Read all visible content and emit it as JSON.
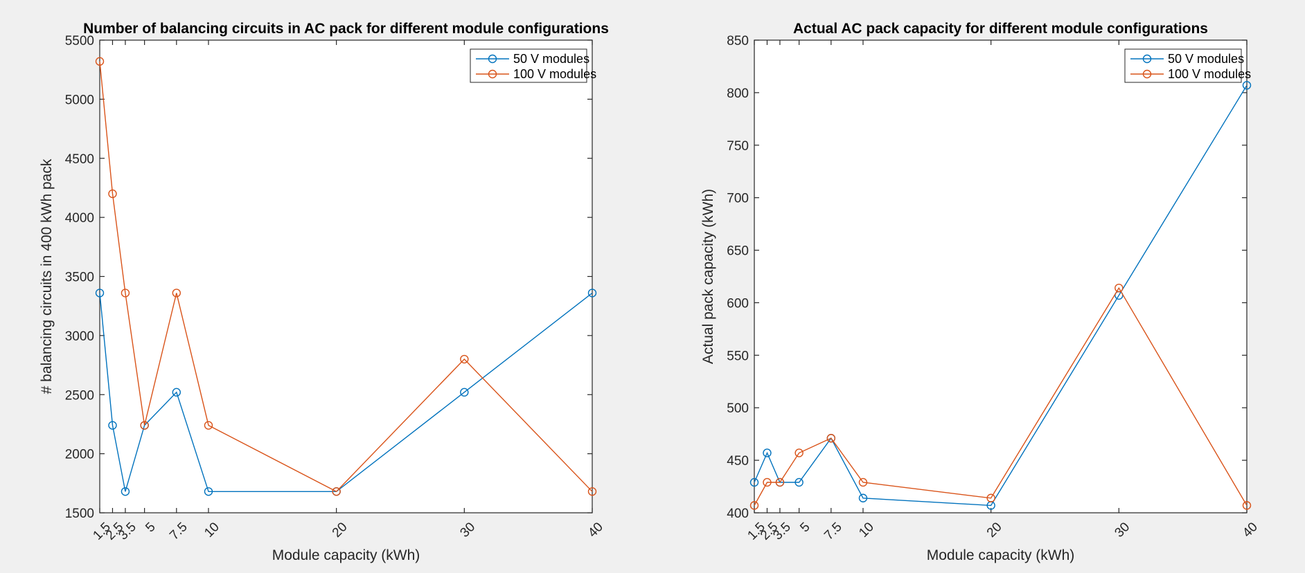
{
  "chart_data": [
    {
      "type": "line",
      "title": "Number of balancing circuits in AC pack for different module configurations",
      "xlabel": "Module capacity (kWh)",
      "ylabel": "# balancing circuits in 400 kWh pack",
      "xlim": [
        1.5,
        40
      ],
      "ylim": [
        1500,
        5500
      ],
      "xticks": [
        1.5,
        2.5,
        3.5,
        5,
        7.5,
        10,
        20,
        30,
        40
      ],
      "xtick_labels": [
        "1.5",
        "2.5",
        "3.5",
        "5",
        "7.5",
        "10",
        "20",
        "30",
        "40"
      ],
      "yticks": [
        1500,
        2000,
        2500,
        3000,
        3500,
        4000,
        4500,
        5000,
        5500
      ],
      "ytick_labels": [
        "1500",
        "2000",
        "2500",
        "3000",
        "3500",
        "4000",
        "4500",
        "5000",
        "5500"
      ],
      "x": [
        1.5,
        2.5,
        3.5,
        5,
        7.5,
        10,
        20,
        30,
        40
      ],
      "legend_position": "top-right",
      "grid": false,
      "series": [
        {
          "name": "50 V modules",
          "color": "#0072BD",
          "values": [
            3360,
            2240,
            1680,
            2240,
            2520,
            1680,
            1680,
            2520,
            3360
          ]
        },
        {
          "name": "100 V modules",
          "color": "#D95319",
          "values": [
            5320,
            4200,
            3360,
            2240,
            3360,
            2240,
            1680,
            2800,
            1680
          ]
        }
      ]
    },
    {
      "type": "line",
      "title": "Actual AC pack capacity for different module configurations",
      "xlabel": "Module capacity (kWh)",
      "ylabel": "Actual pack capacity (kWh)",
      "xlim": [
        1.5,
        40
      ],
      "ylim": [
        400,
        850
      ],
      "xticks": [
        1.5,
        2.5,
        3.5,
        5,
        7.5,
        10,
        20,
        30,
        40
      ],
      "xtick_labels": [
        "1.5",
        "2.5",
        "3.5",
        "5",
        "7.5",
        "10",
        "20",
        "30",
        "40"
      ],
      "yticks": [
        400,
        450,
        500,
        550,
        600,
        650,
        700,
        750,
        800,
        850
      ],
      "ytick_labels": [
        "400",
        "450",
        "500",
        "550",
        "600",
        "650",
        "700",
        "750",
        "800",
        "850"
      ],
      "x": [
        1.5,
        2.5,
        3.5,
        5,
        7.5,
        10,
        20,
        30,
        40
      ],
      "legend_position": "top-right",
      "grid": false,
      "series": [
        {
          "name": "50 V modules",
          "color": "#0072BD",
          "values": [
            429,
            457,
            429,
            429,
            471,
            414,
            407,
            607,
            807
          ]
        },
        {
          "name": "100 V modules",
          "color": "#D95319",
          "values": [
            407,
            429,
            429,
            457,
            471,
            429,
            414,
            614,
            407
          ]
        }
      ]
    }
  ]
}
